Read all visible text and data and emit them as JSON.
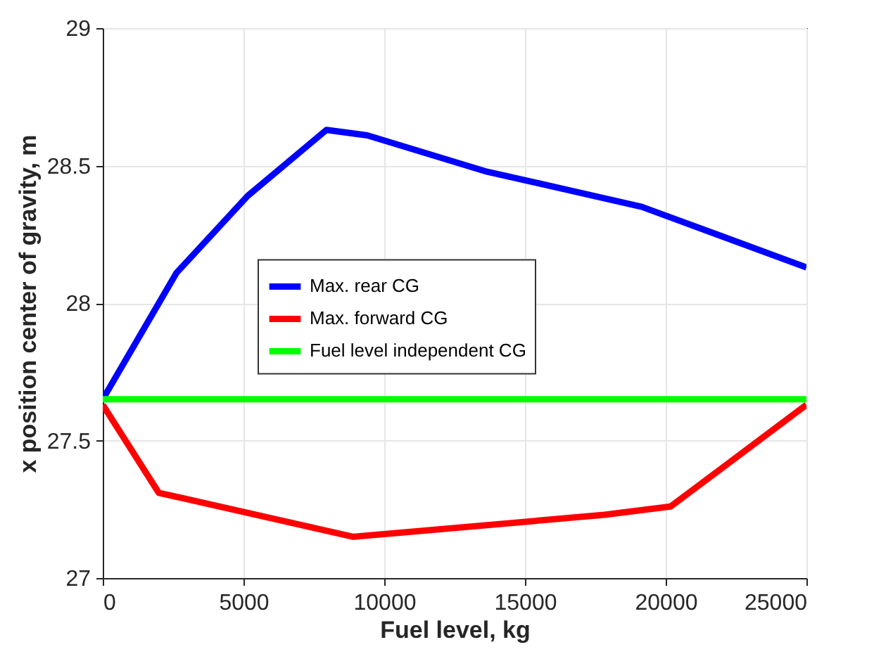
{
  "chart_data": {
    "type": "line",
    "xlabel": "Fuel level, kg",
    "ylabel": "x position center of gravity, m",
    "xlim": [
      0,
      25000
    ],
    "xticks": [
      0,
      5000,
      10000,
      15000,
      20000,
      25000
    ],
    "ylim": [
      27,
      29
    ],
    "yticks": [
      27,
      27.5,
      28,
      28.5,
      29
    ],
    "grid": true,
    "legend": "center",
    "marker": "none",
    "line_style": "solid",
    "series": [
      {
        "name": "Max. rear CG",
        "color": "#0000ff",
        "x": [
          0,
          2620,
          5150,
          7950,
          9400,
          13570,
          19150,
          25000
        ],
        "values": [
          27.65,
          28.11,
          28.39,
          28.63,
          28.61,
          28.48,
          28.35,
          28.13
        ]
      },
      {
        "name": "Max. forward CG",
        "color": "#ff0000",
        "x": [
          0,
          1990,
          8900,
          17830,
          20170,
          25000
        ],
        "values": [
          27.63,
          27.31,
          27.15,
          27.23,
          27.26,
          27.63
        ]
      },
      {
        "name": "Fuel level independent CG",
        "color": "#00ff00",
        "x": [
          0,
          25000
        ],
        "values": [
          27.65,
          27.65
        ]
      }
    ]
  }
}
